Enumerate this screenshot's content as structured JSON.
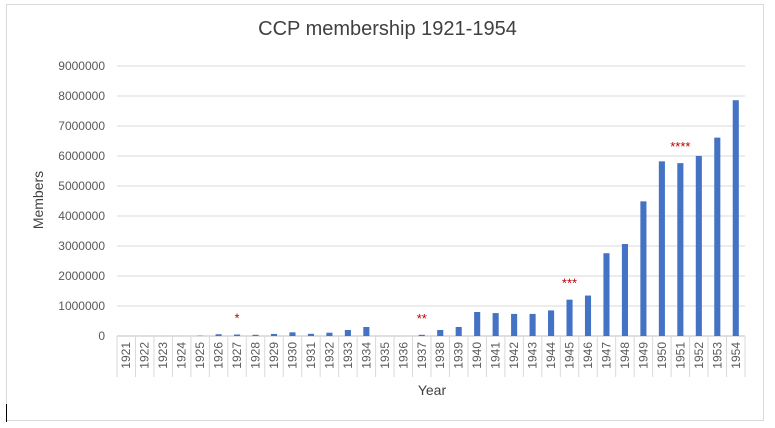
{
  "chart_data": {
    "type": "bar",
    "title": "CCP membership 1921-1954",
    "xlabel": "Year",
    "ylabel": "Members",
    "ylim": [
      0,
      9000000
    ],
    "yticks": [
      "0",
      "1000000",
      "2000000",
      "3000000",
      "4000000",
      "5000000",
      "6000000",
      "7000000",
      "8000000",
      "9000000"
    ],
    "grid": true,
    "legend": "none",
    "bar_color": "#4472c4",
    "annotation_color": "#c00000",
    "categories": [
      "1921",
      "1922",
      "1923",
      "1924",
      "1925",
      "1926",
      "1927",
      "1928",
      "1929",
      "1930",
      "1931",
      "1932",
      "1933",
      "1934",
      "1935",
      "1936",
      "1937",
      "1938",
      "1939",
      "1940",
      "1941",
      "1942",
      "1943",
      "1944",
      "1945",
      "1946",
      "1947",
      "1948",
      "1949",
      "1950",
      "1951",
      "1952",
      "1953",
      "1954"
    ],
    "values": [
      50,
      200,
      432,
      994,
      10000,
      57967,
      50000,
      40000,
      69000,
      122318,
      73000,
      110000,
      200000,
      300000,
      0,
      0,
      40000,
      200000,
      300000,
      800000,
      763447,
      736151,
      736151,
      853420,
      1211128,
      1348320,
      2759456,
      3065533,
      4488080,
      5821604,
      5762293,
      6001698,
      6612254,
      7859473
    ],
    "annotations": [
      {
        "category": "1927",
        "text": "*"
      },
      {
        "category": "1937",
        "text": "**"
      },
      {
        "category": "1945",
        "text": "***"
      },
      {
        "category": "1951",
        "text": "****"
      }
    ]
  }
}
